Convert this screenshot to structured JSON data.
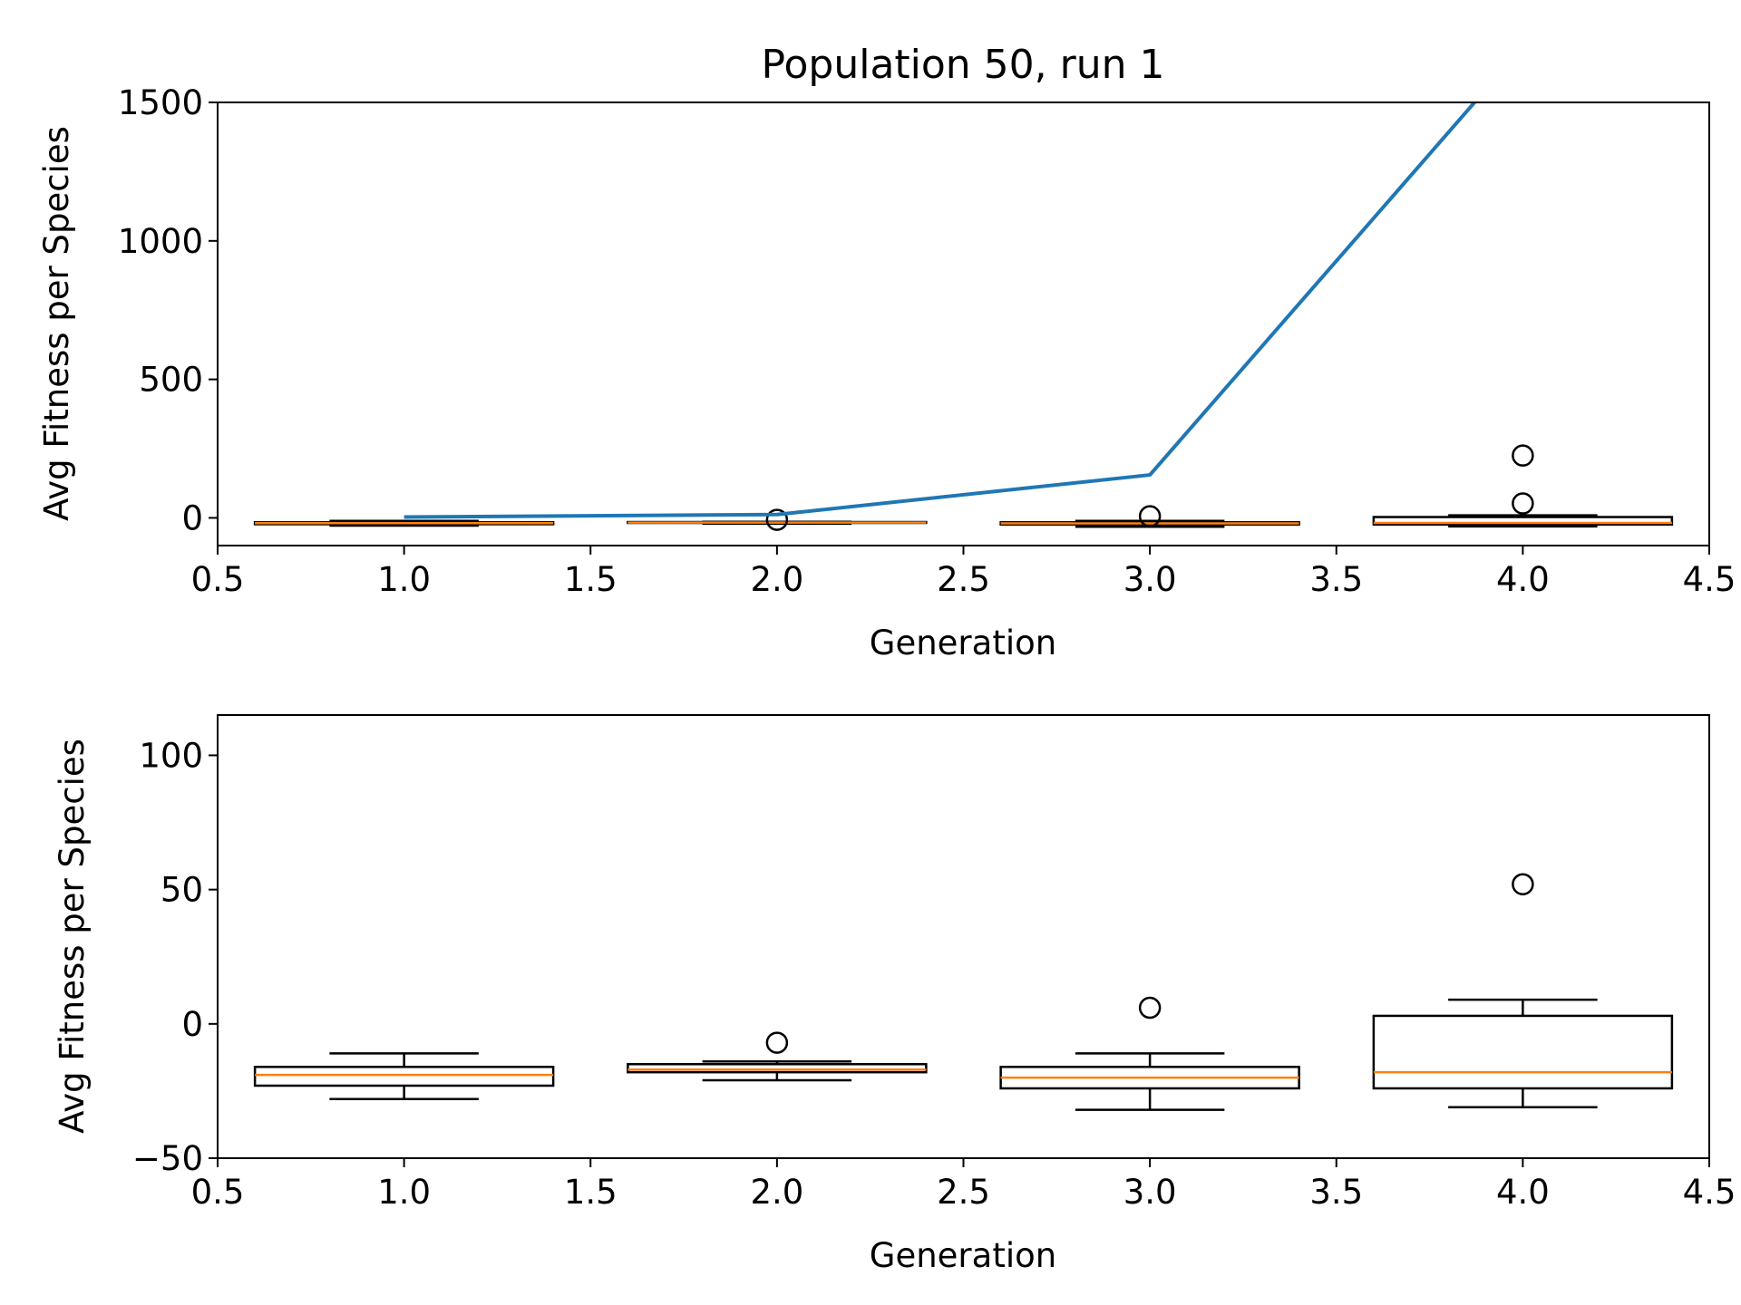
{
  "chart_data": [
    {
      "type": "box",
      "title": "Population 50, run 1",
      "xlabel": "Generation",
      "ylabel": "Avg Fitness per Species",
      "xlim": [
        0.5,
        4.5
      ],
      "ylim": [
        -100,
        1500
      ],
      "xticks": [
        "0.5",
        "1.0",
        "1.5",
        "2.0",
        "2.5",
        "3.0",
        "3.5",
        "4.0",
        "4.5"
      ],
      "yticks": [
        "0",
        "500",
        "1000",
        "1500"
      ],
      "boxes": [
        {
          "x": 1,
          "whisker_low": -28,
          "q1": -23,
          "median": -19,
          "q3": -16,
          "whisker_high": -11,
          "outliers": []
        },
        {
          "x": 2,
          "whisker_low": -21,
          "q1": -18,
          "median": -17,
          "q3": -15,
          "whisker_high": -14,
          "outliers": [
            -7
          ]
        },
        {
          "x": 3,
          "whisker_low": -32,
          "q1": -24,
          "median": -20,
          "q3": -16,
          "whisker_high": -11,
          "outliers": [
            6
          ]
        },
        {
          "x": 4,
          "whisker_low": -31,
          "q1": -24,
          "median": -18,
          "q3": 3,
          "whisker_high": 9,
          "outliers": [
            52,
            225
          ]
        }
      ],
      "line_series": {
        "x": [
          1,
          2,
          3,
          4
        ],
        "y": [
          3,
          12,
          155,
          1700
        ],
        "color": "#1f77b4"
      },
      "colors": {
        "box": "#000000",
        "median": "#ff7f0e",
        "line": "#1f77b4"
      }
    },
    {
      "type": "box",
      "title": "",
      "xlabel": "Generation",
      "ylabel": "Avg Fitness per Species",
      "xlim": [
        0.5,
        4.5
      ],
      "ylim": [
        -50,
        115
      ],
      "xticks": [
        "0.5",
        "1.0",
        "1.5",
        "2.0",
        "2.5",
        "3.0",
        "3.5",
        "4.0",
        "4.5"
      ],
      "yticks": [
        "−50",
        "0",
        "50",
        "100"
      ],
      "boxes": [
        {
          "x": 1,
          "whisker_low": -28,
          "q1": -23,
          "median": -19,
          "q3": -16,
          "whisker_high": -11,
          "outliers": []
        },
        {
          "x": 2,
          "whisker_low": -21,
          "q1": -18,
          "median": -17,
          "q3": -15,
          "whisker_high": -14,
          "outliers": [
            -7
          ]
        },
        {
          "x": 3,
          "whisker_low": -32,
          "q1": -24,
          "median": -20,
          "q3": -16,
          "whisker_high": -11,
          "outliers": [
            6
          ]
        },
        {
          "x": 4,
          "whisker_low": -31,
          "q1": -24,
          "median": -18,
          "q3": 3,
          "whisker_high": 9,
          "outliers": [
            52
          ]
        }
      ],
      "colors": {
        "box": "#000000",
        "median": "#ff7f0e"
      }
    }
  ]
}
